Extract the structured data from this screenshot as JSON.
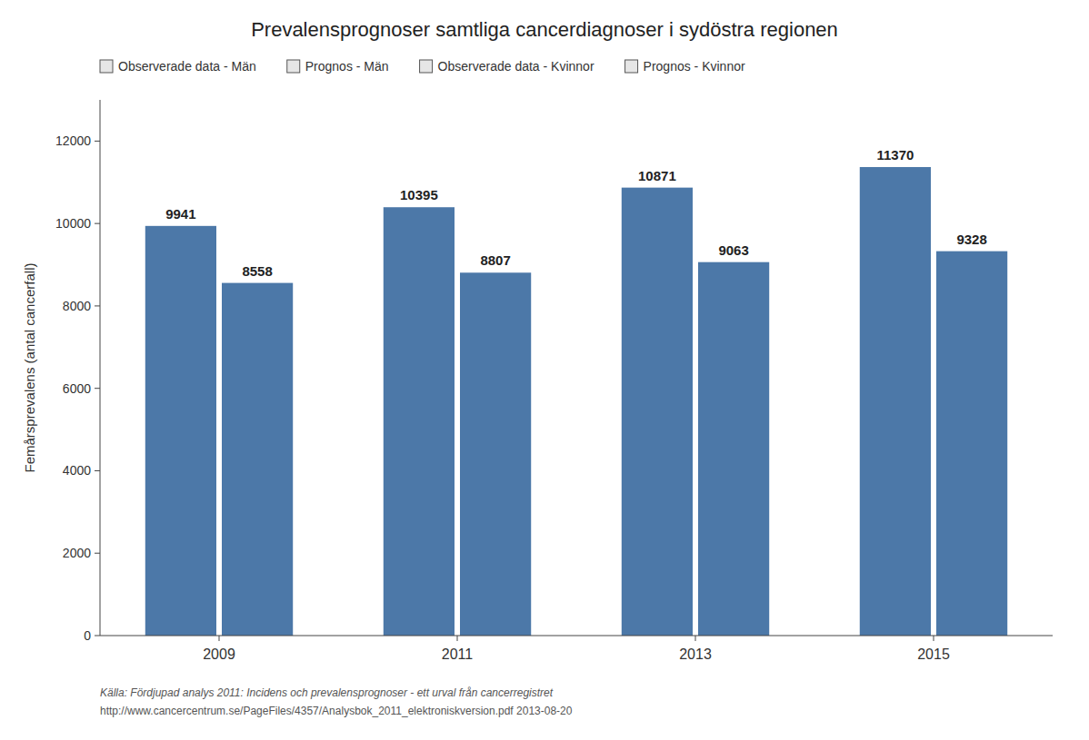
{
  "chart_data": {
    "type": "bar",
    "title": "Prevalensprognoser samtliga cancerdiagnoser i sydöstra regionen",
    "y_label": "Femårsprevalens (antal cancerfall)",
    "categories": [
      "2009",
      "2011",
      "2013",
      "2015"
    ],
    "series": [
      {
        "color": "#4c78a8",
        "values": [
          9941,
          10395,
          10871,
          11370
        ]
      },
      {
        "color": "#4c78a8",
        "values": [
          8558,
          8807,
          9063,
          9328
        ]
      }
    ],
    "legend_labels": [
      "Observerade data - Män",
      "Prognos - Män",
      "Observerade data - Kvinnor",
      "Prognos - Kvinnor"
    ],
    "source": [
      "Källa: Fördjupad analys 2011: Incidens och prevalensprognoser - ett urval från cancerregistret",
      "http://www.cancercentrum.se/PageFiles/4357/Analysbok_2011_elektroniskversion.pdf 2013-08-20"
    ],
    "ylim": [
      0,
      13000
    ],
    "yticks": [
      0,
      2000,
      4000,
      6000,
      8000,
      10000,
      12000
    ],
    "grid": false,
    "data_labels": true
  }
}
